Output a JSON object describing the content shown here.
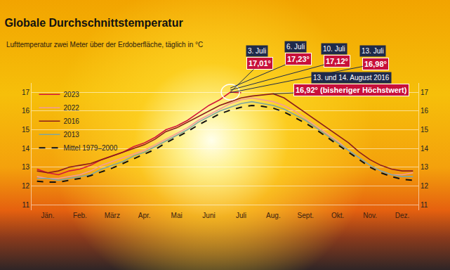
{
  "chart_data": {
    "type": "line",
    "title": "Globale Durchschnittstemperatur",
    "subtitle": "Lufttemperatur zwei Meter über der Erdoberfläche, täglich in °C",
    "categories": [
      null,
      "Jän.",
      null,
      null,
      "Feb.",
      null,
      null,
      "März",
      null,
      null,
      "Apr.",
      null,
      null,
      "Mai",
      null,
      null,
      "Juni",
      null,
      null,
      "Juli",
      null,
      null,
      "Aug.",
      null,
      null,
      "Sept.",
      null,
      null,
      "Okt.",
      null,
      null,
      "Nov.",
      null,
      null,
      "Dez.",
      null
    ],
    "series": [
      {
        "name": "2023",
        "color": "#d3163c",
        "line_style": "solid",
        "values": [
          12.9,
          12.7,
          12.6,
          12.8,
          12.9,
          13.1,
          13.4,
          13.6,
          13.8,
          14.1,
          14.3,
          14.6,
          15.0,
          15.2,
          15.5,
          15.9,
          16.3,
          16.6,
          17.01,
          16.98,
          null,
          null,
          null,
          null,
          null,
          null,
          null,
          null,
          null,
          null,
          null,
          null,
          null,
          null,
          null,
          null
        ]
      },
      {
        "name": "2022",
        "color": "#f39a9c",
        "line_style": "solid",
        "values": [
          12.5,
          12.4,
          12.4,
          12.5,
          12.6,
          12.8,
          13.1,
          13.3,
          13.5,
          13.7,
          13.9,
          14.2,
          14.5,
          14.8,
          15.1,
          15.5,
          15.8,
          16.1,
          16.4,
          16.6,
          16.7,
          16.6,
          16.5,
          16.3,
          16.0,
          15.6,
          15.2,
          14.8,
          14.4,
          13.9,
          13.5,
          13.1,
          12.8,
          12.6,
          12.6,
          12.7
        ]
      },
      {
        "name": "2016",
        "color": "#8c1c1c",
        "line_style": "solid",
        "values": [
          12.8,
          12.7,
          12.8,
          13.0,
          13.1,
          13.2,
          13.4,
          13.6,
          13.8,
          14.0,
          14.2,
          14.5,
          14.9,
          15.1,
          15.4,
          15.7,
          16.0,
          16.3,
          16.5,
          16.7,
          16.8,
          16.85,
          16.92,
          16.7,
          16.3,
          15.9,
          15.5,
          15.1,
          14.7,
          14.3,
          13.8,
          13.4,
          13.1,
          12.9,
          12.8,
          12.8
        ]
      },
      {
        "name": "2013",
        "color": "#7fa79f",
        "line_style": "solid",
        "values": [
          12.4,
          12.4,
          12.3,
          12.4,
          12.5,
          12.6,
          12.9,
          13.1,
          13.3,
          13.6,
          13.8,
          14.1,
          14.4,
          14.7,
          15.0,
          15.4,
          15.7,
          16.0,
          16.2,
          16.4,
          16.5,
          16.4,
          16.3,
          16.1,
          15.8,
          15.5,
          15.1,
          14.7,
          14.3,
          13.9,
          13.5,
          13.1,
          12.8,
          12.6,
          12.5,
          12.5
        ]
      },
      {
        "name": "Mittel 1979–2000",
        "color": "#111111",
        "line_style": "dashed",
        "values": [
          12.25,
          12.2,
          12.2,
          12.3,
          12.4,
          12.55,
          12.75,
          12.95,
          13.2,
          13.45,
          13.7,
          13.95,
          14.3,
          14.6,
          14.9,
          15.25,
          15.55,
          15.85,
          16.05,
          16.2,
          16.3,
          16.25,
          16.15,
          15.95,
          15.65,
          15.35,
          15.0,
          14.6,
          14.2,
          13.8,
          13.4,
          13.0,
          12.7,
          12.5,
          12.35,
          12.3
        ]
      }
    ],
    "ylim": [
      10.7,
      17.5
    ],
    "yticks": [
      11,
      12,
      13,
      14,
      15,
      16,
      17
    ],
    "y2lim": [
      10.7,
      17.5
    ],
    "y2ticks": [
      11,
      12,
      13,
      14,
      15,
      16,
      17
    ],
    "grid": true,
    "legend": "top left",
    "annotations": [
      {
        "date": "3. Juli",
        "text": "17,01°",
        "x": 18,
        "y": 17.01
      },
      {
        "date": "6. Juli",
        "text": "17,23°",
        "x": 18,
        "y": 17.23
      },
      {
        "date": "10. Juli",
        "text": "17,12°",
        "x": 18,
        "y": 17.12
      },
      {
        "date": "13. Juli",
        "text": "16,98°",
        "x": 18,
        "y": 16.98
      },
      {
        "date": "13. und 14. August 2016",
        "text": "16,92° (bisheriger Höchstwert)",
        "x": 22,
        "y": 16.92
      }
    ]
  }
}
